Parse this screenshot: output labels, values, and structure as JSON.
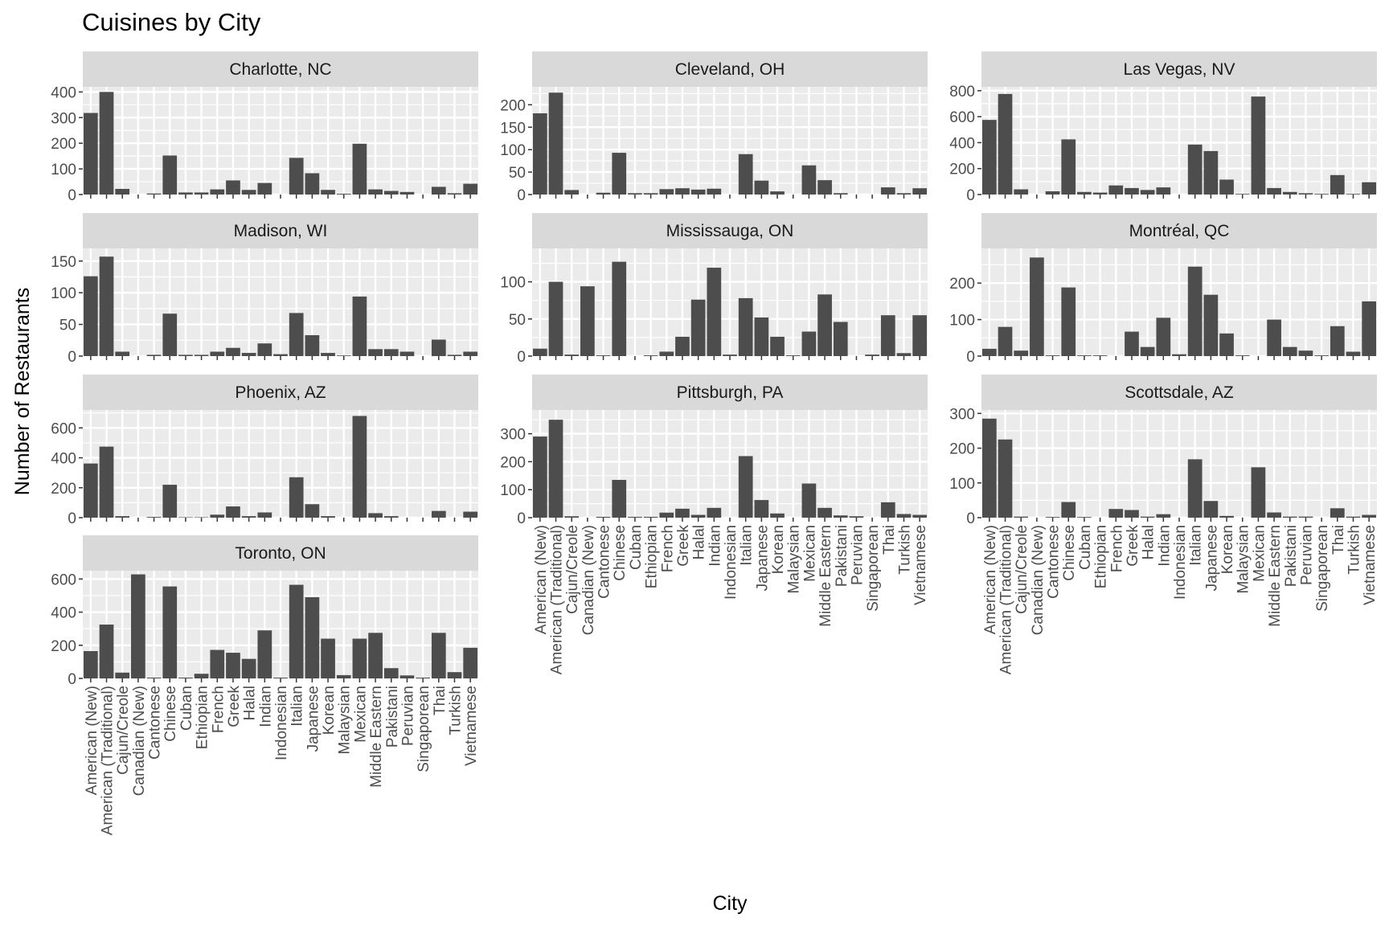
{
  "chart_data": {
    "type": "bar",
    "title": "Cuisines by City",
    "xlabel": "City",
    "ylabel": "Number of Restaurants",
    "layout": "facet_wrap",
    "facet_cols": 3,
    "scales": "free_y",
    "colors": {
      "bar": "#4d4d4d",
      "panel_bg": "#ebebeb",
      "strip_bg": "#d9d9d9",
      "grid": "#ffffff",
      "text": "#4d4d4d",
      "title": "#000000"
    },
    "categories": [
      "American (New)",
      "American (Traditional)",
      "Cajun/Creole",
      "Canadian (New)",
      "Cantonese",
      "Chinese",
      "Cuban",
      "Ethiopian",
      "French",
      "Greek",
      "Halal",
      "Indian",
      "Indonesian",
      "Italian",
      "Japanese",
      "Korean",
      "Malaysian",
      "Mexican",
      "Middle Eastern",
      "Pakistani",
      "Peruvian",
      "Singaporean",
      "Thai",
      "Turkish",
      "Vietnamese"
    ],
    "panels": [
      {
        "city": "Charlotte, NC",
        "ymax": 420,
        "ticks": [
          0,
          100,
          200,
          300,
          400
        ],
        "values": [
          318,
          400,
          22,
          0,
          4,
          152,
          8,
          8,
          20,
          55,
          18,
          45,
          0,
          143,
          83,
          18,
          3,
          198,
          20,
          14,
          10,
          0,
          30,
          5,
          42
        ]
      },
      {
        "city": "Cleveland, OH",
        "ymax": 240,
        "ticks": [
          0,
          50,
          100,
          150,
          200
        ],
        "values": [
          181,
          227,
          10,
          0,
          4,
          93,
          3,
          3,
          12,
          14,
          11,
          13,
          0,
          90,
          31,
          7,
          0,
          65,
          32,
          3,
          0,
          0,
          16,
          3,
          14
        ]
      },
      {
        "city": "Las Vegas, NV",
        "ymax": 830,
        "ticks": [
          0,
          200,
          400,
          600,
          800
        ],
        "values": [
          575,
          775,
          40,
          0,
          25,
          425,
          20,
          15,
          70,
          50,
          35,
          55,
          0,
          385,
          335,
          115,
          5,
          755,
          50,
          20,
          10,
          5,
          150,
          5,
          95
        ]
      },
      {
        "city": "Madison, WI",
        "ymax": 170,
        "ticks": [
          0,
          50,
          100,
          150
        ],
        "values": [
          126,
          157,
          7,
          0,
          2,
          67,
          2,
          2,
          7,
          13,
          5,
          20,
          3,
          68,
          33,
          5,
          1,
          94,
          11,
          11,
          7,
          0,
          26,
          2,
          7
        ]
      },
      {
        "city": "Mississauga, ON",
        "ymax": 145,
        "ticks": [
          0,
          50,
          100
        ],
        "values": [
          10,
          100,
          2,
          94,
          1,
          127,
          0,
          1,
          6,
          26,
          76,
          119,
          2,
          78,
          52,
          26,
          1,
          33,
          83,
          46,
          0,
          2,
          55,
          4,
          55
        ]
      },
      {
        "city": "Montréal, QC",
        "ymax": 295,
        "ticks": [
          0,
          100,
          200
        ],
        "values": [
          20,
          80,
          15,
          270,
          2,
          188,
          2,
          2,
          0,
          67,
          25,
          105,
          5,
          245,
          168,
          62,
          2,
          0,
          100,
          25,
          15,
          2,
          82,
          12,
          150
        ]
      },
      {
        "city": "Phoenix, AZ",
        "ymax": 720,
        "ticks": [
          0,
          200,
          400,
          600
        ],
        "values": [
          362,
          475,
          10,
          0,
          5,
          220,
          3,
          3,
          20,
          75,
          10,
          35,
          0,
          270,
          90,
          10,
          0,
          680,
          30,
          10,
          0,
          0,
          45,
          0,
          40
        ]
      },
      {
        "city": "Pittsburgh, PA",
        "ymax": 385,
        "ticks": [
          0,
          100,
          200,
          300
        ],
        "values": [
          290,
          350,
          5,
          0,
          3,
          135,
          3,
          3,
          18,
          32,
          10,
          35,
          0,
          220,
          63,
          15,
          0,
          122,
          35,
          8,
          5,
          0,
          55,
          13,
          10
        ]
      },
      {
        "city": "Scottsdale, AZ",
        "ymax": 310,
        "ticks": [
          0,
          100,
          200,
          300
        ],
        "values": [
          285,
          225,
          3,
          0,
          2,
          45,
          2,
          0,
          25,
          22,
          3,
          10,
          0,
          168,
          48,
          5,
          0,
          145,
          15,
          3,
          3,
          0,
          27,
          3,
          8
        ]
      },
      {
        "city": "Toronto, ON",
        "ymax": 650,
        "ticks": [
          0,
          200,
          400,
          600
        ],
        "values": [
          165,
          325,
          35,
          628,
          5,
          555,
          5,
          28,
          172,
          155,
          118,
          290,
          5,
          565,
          490,
          240,
          20,
          240,
          275,
          62,
          18,
          5,
          275,
          38,
          185
        ]
      }
    ]
  }
}
